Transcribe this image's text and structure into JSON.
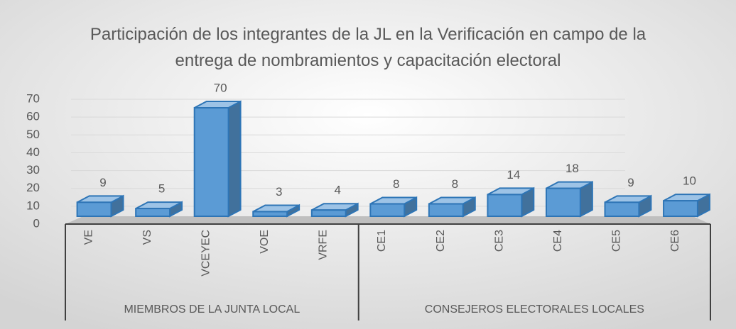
{
  "chart_data": {
    "type": "bar3d",
    "title": "Participación de los integrantes de la JL en la Verificación en campo de la entrega de nombramientos y capacitación electoral",
    "groups": [
      {
        "name": "MIEMBROS DE LA JUNTA LOCAL",
        "categories": [
          "VE",
          "VS",
          "VCEYEC",
          "VOE",
          "VRFE"
        ],
        "values": [
          9,
          5,
          70,
          3,
          4
        ]
      },
      {
        "name": "CONSEJEROS ELECTORALES LOCALES",
        "categories": [
          "CE1",
          "CE2",
          "CE3",
          "CE4",
          "CE5",
          "CE6"
        ],
        "values": [
          8,
          8,
          14,
          18,
          9,
          10
        ]
      }
    ],
    "color": "#5b9bd5",
    "ylim": [
      0,
      70
    ],
    "yticks": [
      0,
      10,
      20,
      30,
      40,
      50,
      60,
      70
    ],
    "grid": true
  }
}
